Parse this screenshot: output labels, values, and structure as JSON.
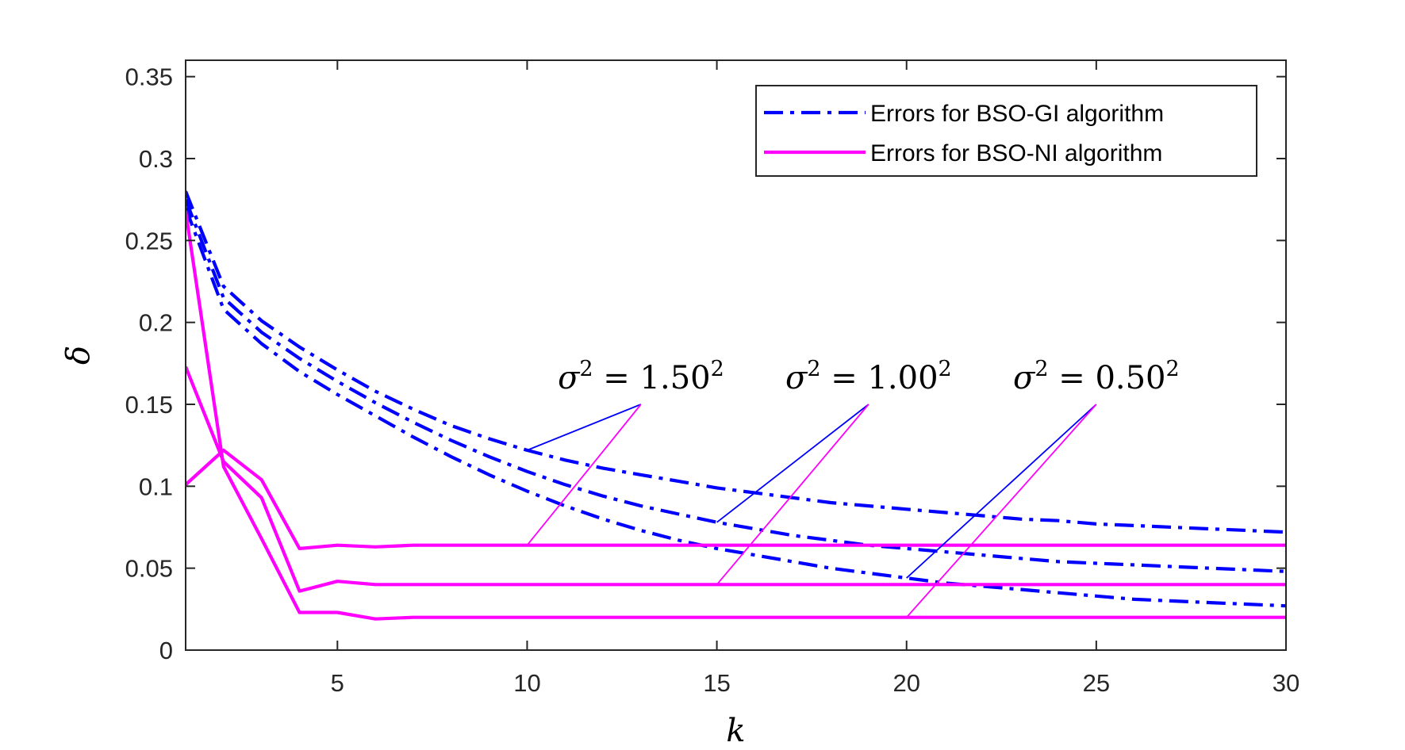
{
  "chart_data": {
    "type": "line",
    "xlabel": "k",
    "ylabel": "δ",
    "xlim": [
      1,
      30
    ],
    "ylim": [
      0,
      0.36
    ],
    "xticks": [
      5,
      10,
      15,
      20,
      25,
      30
    ],
    "yticks": [
      0,
      0.05,
      0.1,
      0.15,
      0.2,
      0.25,
      0.3,
      0.35
    ],
    "ytick_labels": [
      "0",
      "0.05",
      "0.1",
      "0.15",
      "0.2",
      "0.25",
      "0.3",
      "0.35"
    ],
    "legend_position": "top-right",
    "grid": false,
    "legend": [
      {
        "label": "Errors for BSO-GI algorithm",
        "style": "dashdot",
        "color": "#0000ff"
      },
      {
        "label": "Errors for BSO-NI algorithm",
        "style": "solid",
        "color": "#ff00ff"
      }
    ],
    "series": [
      {
        "group": "GI",
        "color": "#0000ff",
        "style": "dashdot",
        "x": [
          1,
          2,
          3,
          4,
          5,
          6,
          7,
          8,
          9,
          10,
          11,
          12,
          13,
          14,
          15,
          16,
          17,
          18,
          19,
          20,
          21,
          22,
          23,
          24,
          25,
          26,
          27,
          28,
          29,
          30
        ],
        "y": [
          0.28,
          0.222,
          0.201,
          0.185,
          0.171,
          0.158,
          0.147,
          0.137,
          0.129,
          0.122,
          0.116,
          0.111,
          0.107,
          0.103,
          0.099,
          0.096,
          0.093,
          0.09,
          0.088,
          0.086,
          0.084,
          0.082,
          0.08,
          0.079,
          0.077,
          0.076,
          0.075,
          0.074,
          0.073,
          0.072
        ]
      },
      {
        "group": "GI",
        "color": "#0000ff",
        "style": "dashdot",
        "x": [
          1,
          2,
          3,
          4,
          5,
          6,
          7,
          8,
          9,
          10,
          11,
          12,
          13,
          14,
          15,
          16,
          17,
          18,
          19,
          20,
          21,
          22,
          23,
          24,
          25,
          26,
          27,
          28,
          29,
          30
        ],
        "y": [
          0.275,
          0.215,
          0.194,
          0.178,
          0.164,
          0.151,
          0.139,
          0.128,
          0.118,
          0.109,
          0.101,
          0.094,
          0.088,
          0.083,
          0.078,
          0.074,
          0.07,
          0.067,
          0.064,
          0.062,
          0.06,
          0.058,
          0.056,
          0.054,
          0.053,
          0.052,
          0.051,
          0.05,
          0.049,
          0.048
        ]
      },
      {
        "group": "GI",
        "color": "#0000ff",
        "style": "dashdot",
        "x": [
          1,
          2,
          3,
          4,
          5,
          6,
          7,
          8,
          9,
          10,
          11,
          12,
          13,
          14,
          15,
          16,
          17,
          18,
          19,
          20,
          21,
          22,
          23,
          24,
          25,
          26,
          27,
          28,
          29,
          30
        ],
        "y": [
          0.27,
          0.208,
          0.187,
          0.17,
          0.156,
          0.143,
          0.13,
          0.118,
          0.107,
          0.097,
          0.088,
          0.08,
          0.073,
          0.067,
          0.062,
          0.058,
          0.054,
          0.05,
          0.047,
          0.044,
          0.041,
          0.039,
          0.037,
          0.035,
          0.033,
          0.031,
          0.03,
          0.029,
          0.028,
          0.027
        ]
      },
      {
        "group": "NI",
        "color": "#ff00ff",
        "style": "solid",
        "x": [
          1,
          2,
          3,
          4,
          5,
          6,
          7,
          8,
          9,
          10,
          11,
          12,
          13,
          14,
          15,
          16,
          17,
          18,
          19,
          20,
          21,
          22,
          23,
          24,
          25,
          26,
          27,
          28,
          29,
          30
        ],
        "y": [
          0.101,
          0.122,
          0.104,
          0.062,
          0.064,
          0.063,
          0.064,
          0.064,
          0.064,
          0.064,
          0.064,
          0.064,
          0.064,
          0.064,
          0.064,
          0.064,
          0.064,
          0.064,
          0.064,
          0.064,
          0.064,
          0.064,
          0.064,
          0.064,
          0.064,
          0.064,
          0.064,
          0.064,
          0.064,
          0.064
        ]
      },
      {
        "group": "NI",
        "color": "#ff00ff",
        "style": "solid",
        "x": [
          1,
          2,
          3,
          4,
          5,
          6,
          7,
          8,
          9,
          10,
          11,
          12,
          13,
          14,
          15,
          16,
          17,
          18,
          19,
          20,
          21,
          22,
          23,
          24,
          25,
          26,
          27,
          28,
          29,
          30
        ],
        "y": [
          0.173,
          0.115,
          0.093,
          0.036,
          0.042,
          0.04,
          0.04,
          0.04,
          0.04,
          0.04,
          0.04,
          0.04,
          0.04,
          0.04,
          0.04,
          0.04,
          0.04,
          0.04,
          0.04,
          0.04,
          0.04,
          0.04,
          0.04,
          0.04,
          0.04,
          0.04,
          0.04,
          0.04,
          0.04,
          0.04
        ]
      },
      {
        "group": "NI",
        "color": "#ff00ff",
        "style": "solid",
        "x": [
          1,
          2,
          3,
          4,
          5,
          6,
          7,
          8,
          9,
          10,
          11,
          12,
          13,
          14,
          15,
          16,
          17,
          18,
          19,
          20,
          21,
          22,
          23,
          24,
          25,
          26,
          27,
          28,
          29,
          30
        ],
        "y": [
          0.268,
          0.112,
          0.068,
          0.023,
          0.023,
          0.019,
          0.02,
          0.02,
          0.02,
          0.02,
          0.02,
          0.02,
          0.02,
          0.02,
          0.02,
          0.02,
          0.02,
          0.02,
          0.02,
          0.02,
          0.02,
          0.02,
          0.02,
          0.02,
          0.02,
          0.02,
          0.02,
          0.02,
          0.02,
          0.02
        ]
      }
    ],
    "annotations": [
      {
        "text": "σ² = 1.50²",
        "label_point": [
          13,
          0.15
        ],
        "targets": [
          {
            "point": [
              10,
              0.122
            ],
            "color": "#0000ff"
          },
          {
            "point": [
              10,
              0.064
            ],
            "color": "#ff00ff"
          }
        ]
      },
      {
        "text": "σ² = 1.00²",
        "label_point": [
          19,
          0.15
        ],
        "targets": [
          {
            "point": [
              15,
              0.078
            ],
            "color": "#0000ff"
          },
          {
            "point": [
              15,
              0.04
            ],
            "color": "#ff00ff"
          }
        ]
      },
      {
        "text": "σ² = 0.50²",
        "label_point": [
          25,
          0.15
        ],
        "targets": [
          {
            "point": [
              20,
              0.044
            ],
            "color": "#0000ff"
          },
          {
            "point": [
              20,
              0.02
            ],
            "color": "#ff00ff"
          }
        ]
      }
    ]
  }
}
